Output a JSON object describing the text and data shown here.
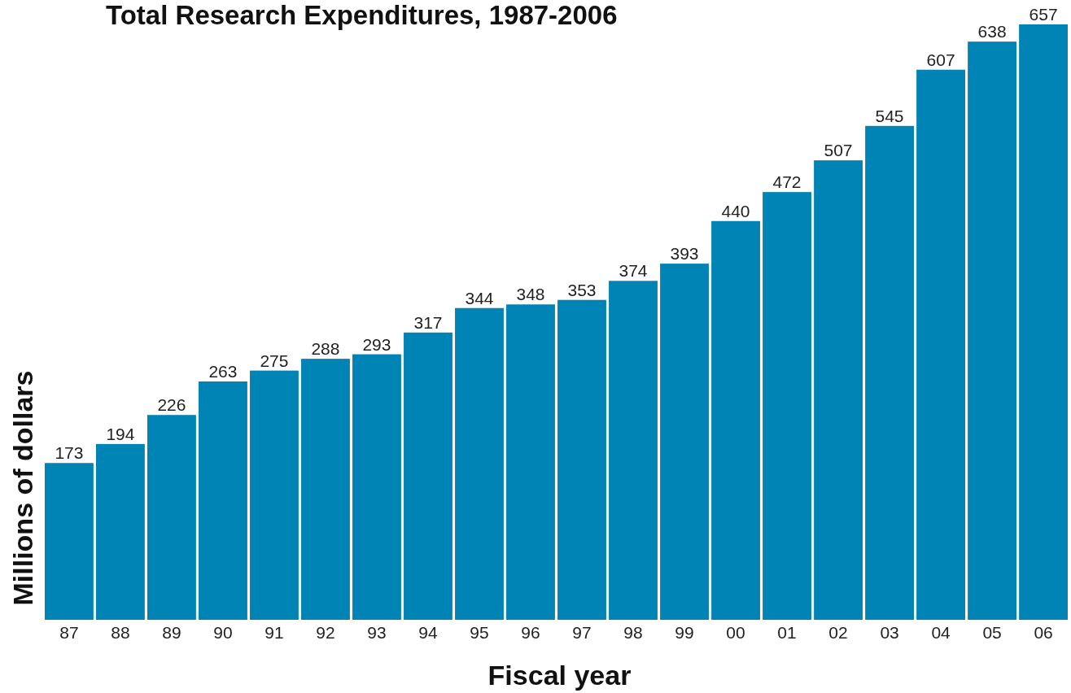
{
  "chart_data": {
    "type": "bar",
    "title": "Total Research Expenditures, 1987-2006",
    "xlabel": "Fiscal year",
    "ylabel": "Millions of dollars",
    "categories": [
      "87",
      "88",
      "89",
      "90",
      "91",
      "92",
      "93",
      "94",
      "95",
      "96",
      "97",
      "98",
      "99",
      "00",
      "01",
      "02",
      "03",
      "04",
      "05",
      "06"
    ],
    "values": [
      173,
      194,
      226,
      263,
      275,
      288,
      293,
      317,
      344,
      348,
      353,
      374,
      393,
      440,
      472,
      507,
      545,
      607,
      638,
      657
    ],
    "color": "#0083b5",
    "data_labels": true
  }
}
